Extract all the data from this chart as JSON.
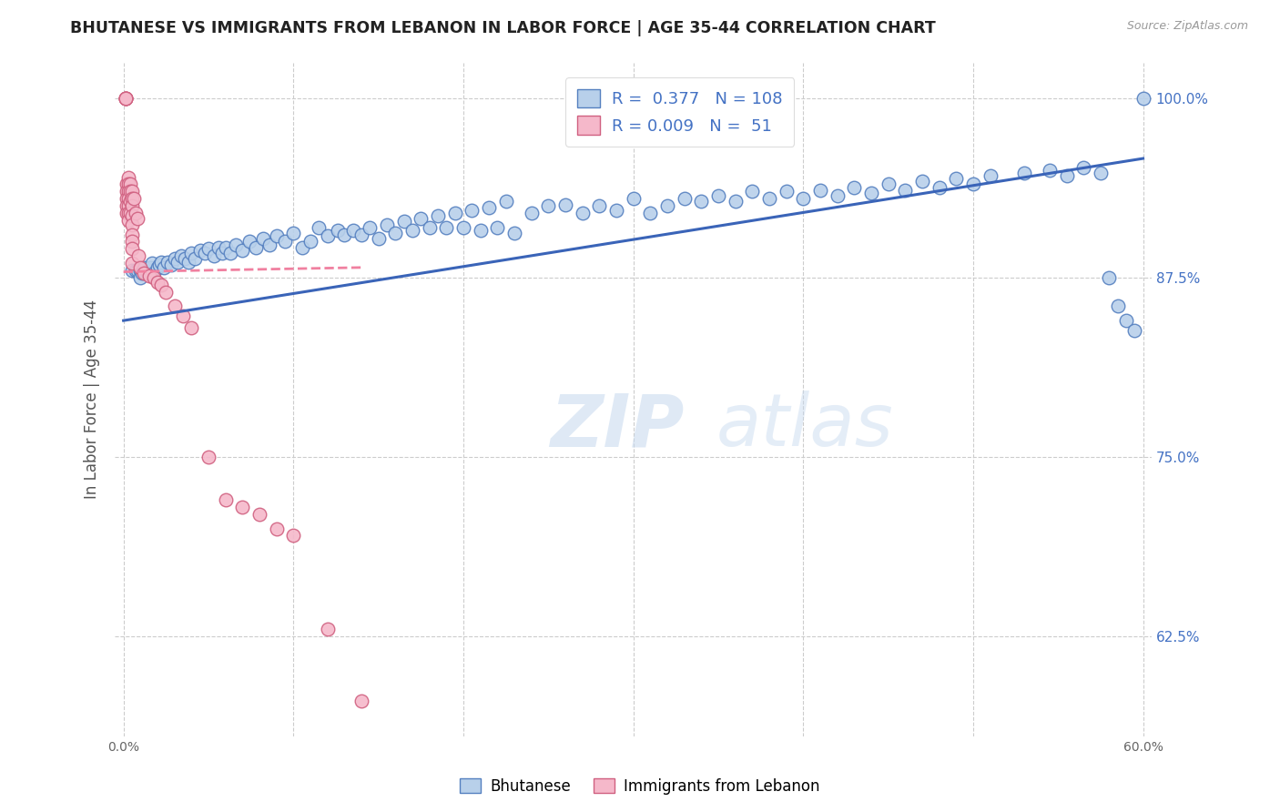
{
  "title": "BHUTANESE VS IMMIGRANTS FROM LEBANON IN LABOR FORCE | AGE 35-44 CORRELATION CHART",
  "source": "Source: ZipAtlas.com",
  "ylabel": "In Labor Force | Age 35-44",
  "xlim": [
    -0.005,
    0.605
  ],
  "ylim": [
    0.555,
    1.025
  ],
  "yticks": [
    0.625,
    0.75,
    0.875,
    1.0
  ],
  "ytick_labels": [
    "62.5%",
    "75.0%",
    "87.5%",
    "100.0%"
  ],
  "xticks": [
    0.0,
    0.1,
    0.2,
    0.3,
    0.4,
    0.5,
    0.6
  ],
  "xtick_labels": [
    "0.0%",
    "",
    "",
    "",
    "",
    "",
    "60.0%"
  ],
  "blue_R": 0.377,
  "blue_N": 108,
  "pink_R": 0.009,
  "pink_N": 51,
  "blue_color": "#b8d0ea",
  "pink_color": "#f5b8ca",
  "blue_edge_color": "#5580c0",
  "pink_edge_color": "#d06080",
  "blue_line_color": "#3a64b8",
  "pink_line_color": "#f080a0",
  "legend_text_color": "#4472c4",
  "title_color": "#222222",
  "grid_color": "#cccccc",
  "watermark_color": "#d0dff0",
  "blue_scatter_x": [
    0.005,
    0.007,
    0.008,
    0.01,
    0.01,
    0.011,
    0.012,
    0.013,
    0.014,
    0.015,
    0.016,
    0.016,
    0.017,
    0.018,
    0.02,
    0.021,
    0.022,
    0.024,
    0.026,
    0.028,
    0.03,
    0.032,
    0.034,
    0.036,
    0.038,
    0.04,
    0.042,
    0.045,
    0.048,
    0.05,
    0.053,
    0.056,
    0.058,
    0.06,
    0.063,
    0.066,
    0.07,
    0.074,
    0.078,
    0.082,
    0.086,
    0.09,
    0.095,
    0.1,
    0.105,
    0.11,
    0.115,
    0.12,
    0.126,
    0.13,
    0.135,
    0.14,
    0.145,
    0.15,
    0.155,
    0.16,
    0.165,
    0.17,
    0.175,
    0.18,
    0.185,
    0.19,
    0.195,
    0.2,
    0.205,
    0.21,
    0.215,
    0.22,
    0.225,
    0.23,
    0.24,
    0.25,
    0.26,
    0.27,
    0.28,
    0.29,
    0.3,
    0.31,
    0.32,
    0.33,
    0.34,
    0.35,
    0.36,
    0.37,
    0.38,
    0.39,
    0.4,
    0.41,
    0.42,
    0.43,
    0.44,
    0.45,
    0.46,
    0.47,
    0.48,
    0.49,
    0.5,
    0.51,
    0.53,
    0.545,
    0.555,
    0.565,
    0.575,
    0.58,
    0.585,
    0.59,
    0.595,
    0.6
  ],
  "blue_scatter_y": [
    0.88,
    0.88,
    0.88,
    0.88,
    0.875,
    0.878,
    0.882,
    0.878,
    0.878,
    0.878,
    0.878,
    0.882,
    0.885,
    0.878,
    0.882,
    0.884,
    0.886,
    0.882,
    0.886,
    0.884,
    0.888,
    0.886,
    0.89,
    0.888,
    0.886,
    0.892,
    0.888,
    0.894,
    0.892,
    0.895,
    0.89,
    0.896,
    0.892,
    0.896,
    0.892,
    0.898,
    0.894,
    0.9,
    0.896,
    0.902,
    0.898,
    0.904,
    0.9,
    0.906,
    0.896,
    0.9,
    0.91,
    0.904,
    0.908,
    0.905,
    0.908,
    0.905,
    0.91,
    0.902,
    0.912,
    0.906,
    0.914,
    0.908,
    0.916,
    0.91,
    0.918,
    0.91,
    0.92,
    0.91,
    0.922,
    0.908,
    0.924,
    0.91,
    0.928,
    0.906,
    0.92,
    0.925,
    0.926,
    0.92,
    0.925,
    0.922,
    0.93,
    0.92,
    0.925,
    0.93,
    0.928,
    0.932,
    0.928,
    0.935,
    0.93,
    0.935,
    0.93,
    0.936,
    0.932,
    0.938,
    0.934,
    0.94,
    0.936,
    0.942,
    0.938,
    0.944,
    0.94,
    0.946,
    0.948,
    0.95,
    0.946,
    0.952,
    0.948,
    0.875,
    0.855,
    0.845,
    0.838,
    1.0
  ],
  "pink_scatter_x": [
    0.001,
    0.001,
    0.001,
    0.001,
    0.002,
    0.002,
    0.002,
    0.002,
    0.002,
    0.003,
    0.003,
    0.003,
    0.003,
    0.003,
    0.003,
    0.003,
    0.004,
    0.004,
    0.004,
    0.004,
    0.005,
    0.005,
    0.005,
    0.005,
    0.005,
    0.005,
    0.005,
    0.005,
    0.005,
    0.006,
    0.007,
    0.008,
    0.009,
    0.01,
    0.012,
    0.015,
    0.018,
    0.02,
    0.022,
    0.025,
    0.03,
    0.035,
    0.04,
    0.05,
    0.06,
    0.07,
    0.08,
    0.09,
    0.1,
    0.12,
    0.14
  ],
  "pink_scatter_y": [
    1.0,
    1.0,
    1.0,
    1.0,
    0.94,
    0.935,
    0.93,
    0.925,
    0.92,
    0.945,
    0.94,
    0.935,
    0.93,
    0.925,
    0.92,
    0.915,
    0.94,
    0.935,
    0.928,
    0.92,
    0.935,
    0.93,
    0.925,
    0.918,
    0.912,
    0.905,
    0.9,
    0.895,
    0.885,
    0.93,
    0.92,
    0.916,
    0.89,
    0.882,
    0.878,
    0.876,
    0.875,
    0.872,
    0.87,
    0.865,
    0.855,
    0.848,
    0.84,
    0.75,
    0.72,
    0.715,
    0.71,
    0.7,
    0.695,
    0.63,
    0.58
  ],
  "blue_line_x": [
    0.0,
    0.6
  ],
  "blue_line_y": [
    0.845,
    0.958
  ],
  "pink_line_x": [
    0.0,
    0.14
  ],
  "pink_line_y": [
    0.879,
    0.882
  ],
  "figsize": [
    14.06,
    8.92
  ],
  "dpi": 100
}
